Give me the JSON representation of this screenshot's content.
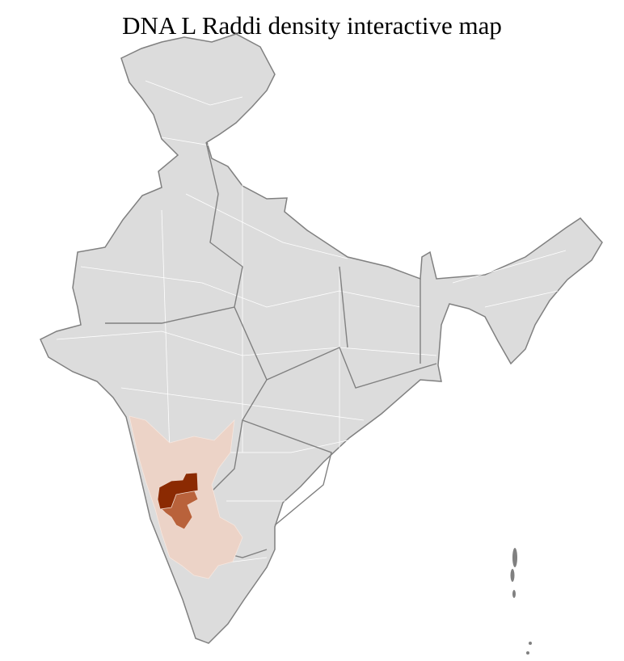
{
  "title": "DNA L Raddi density interactive map",
  "colors": {
    "no_data": "#dcdcdc",
    "border_state": "#808080",
    "border_district": "#ffffff",
    "low": "#ecd3c7",
    "medium": "#b9623b",
    "high": "#8b2a02"
  },
  "regions": [
    {
      "name": "low-density-districts",
      "level": "low"
    },
    {
      "name": "medium-density-districts",
      "level": "medium"
    },
    {
      "name": "high-density-districts",
      "level": "high"
    }
  ]
}
